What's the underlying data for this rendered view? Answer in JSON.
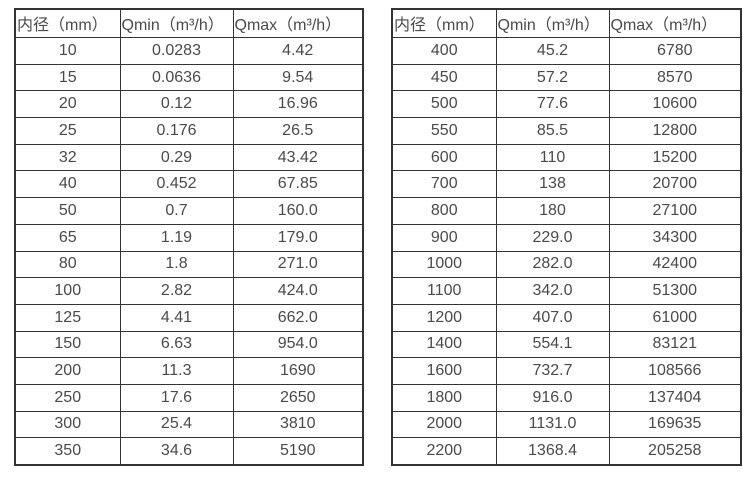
{
  "colors": {
    "background": "#ffffff",
    "border": "#333333",
    "text": "#4a4a4a"
  },
  "left_table": {
    "headers": [
      "内径（mm）",
      "Qmin（m³/h）",
      "Qmax（m³/h）"
    ],
    "rows": [
      [
        "10",
        "0.0283",
        "4.42"
      ],
      [
        "15",
        "0.0636",
        "9.54"
      ],
      [
        "20",
        "0.12",
        "16.96"
      ],
      [
        "25",
        "0.176",
        "26.5"
      ],
      [
        "32",
        "0.29",
        "43.42"
      ],
      [
        "40",
        "0.452",
        "67.85"
      ],
      [
        "50",
        "0.7",
        "160.0"
      ],
      [
        "65",
        "1.19",
        "179.0"
      ],
      [
        "80",
        "1.8",
        "271.0"
      ],
      [
        "100",
        "2.82",
        "424.0"
      ],
      [
        "125",
        "4.41",
        "662.0"
      ],
      [
        "150",
        "6.63",
        "954.0"
      ],
      [
        "200",
        "11.3",
        "1690"
      ],
      [
        "250",
        "17.6",
        "2650"
      ],
      [
        "300",
        "25.4",
        "3810"
      ],
      [
        "350",
        "34.6",
        "5190"
      ]
    ]
  },
  "right_table": {
    "headers": [
      "内径（mm）",
      "Qmin（m³/h）",
      "Qmax（m³/h）"
    ],
    "rows": [
      [
        "400",
        "45.2",
        "6780"
      ],
      [
        "450",
        "57.2",
        "8570"
      ],
      [
        "500",
        "77.6",
        "10600"
      ],
      [
        "550",
        "85.5",
        "12800"
      ],
      [
        "600",
        "110",
        "15200"
      ],
      [
        "700",
        "138",
        "20700"
      ],
      [
        "800",
        "180",
        "27100"
      ],
      [
        "900",
        "229.0",
        "34300"
      ],
      [
        "1000",
        "282.0",
        "42400"
      ],
      [
        "1100",
        "342.0",
        "51300"
      ],
      [
        "1200",
        "407.0",
        "61000"
      ],
      [
        "1400",
        "554.1",
        "83121"
      ],
      [
        "1600",
        "732.7",
        "108566"
      ],
      [
        "1800",
        "916.0",
        "137404"
      ],
      [
        "2000",
        "1131.0",
        "169635"
      ],
      [
        "2200",
        "1368.4",
        "205258"
      ]
    ]
  }
}
